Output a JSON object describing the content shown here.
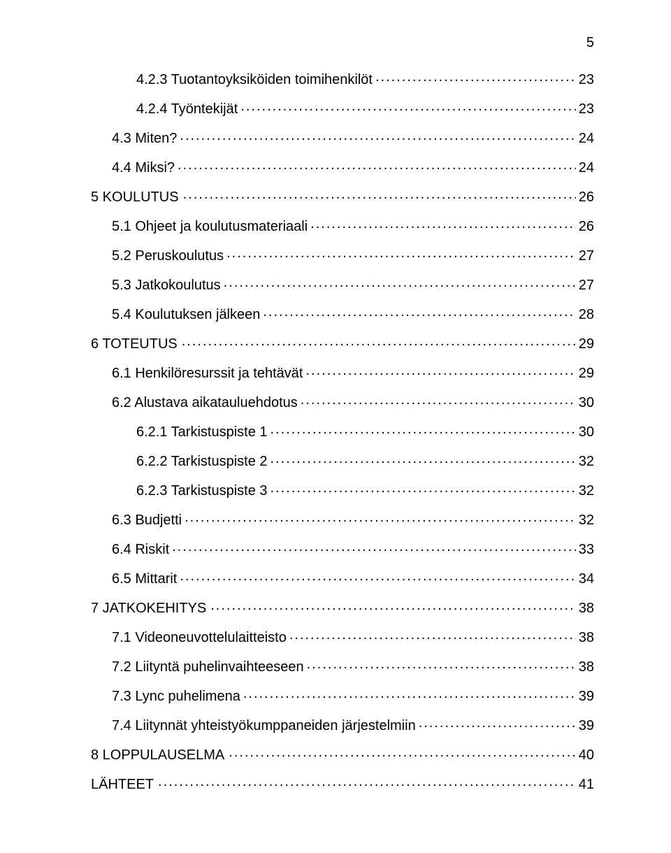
{
  "page_number": "5",
  "typography": {
    "font_family": "Arial",
    "font_size_pt": 15,
    "color": "#000000",
    "background": "#ffffff"
  },
  "toc": [
    {
      "indent": 2,
      "label": "4.2.3  Tuotantoyksiköiden toimihenkilöt",
      "page": "23"
    },
    {
      "indent": 2,
      "label": "4.2.4  Työntekijät",
      "page": "23"
    },
    {
      "indent": 1,
      "label": "4.3  Miten?",
      "page": "24"
    },
    {
      "indent": 1,
      "label": "4.4  Miksi?",
      "page": "24"
    },
    {
      "indent": 0,
      "label": "5  KOULUTUS",
      "page": "26",
      "nodots_space": true
    },
    {
      "indent": 1,
      "label": "5.1  Ohjeet ja koulutusmateriaali",
      "page": "26"
    },
    {
      "indent": 1,
      "label": "5.2  Peruskoulutus",
      "page": "27"
    },
    {
      "indent": 1,
      "label": "5.3  Jatkokoulutus",
      "page": "27"
    },
    {
      "indent": 1,
      "label": "5.4  Koulutuksen jälkeen",
      "page": "28"
    },
    {
      "indent": 0,
      "label": "6  TOTEUTUS",
      "page": "29",
      "nodots_space": true
    },
    {
      "indent": 1,
      "label": "6.1  Henkilöresurssit ja tehtävät",
      "page": "29"
    },
    {
      "indent": 1,
      "label": "6.2  Alustava aikatauluehdotus",
      "page": "30"
    },
    {
      "indent": 2,
      "label": "6.2.1  Tarkistuspiste 1",
      "page": "30"
    },
    {
      "indent": 2,
      "label": "6.2.2  Tarkistuspiste 2",
      "page": "32"
    },
    {
      "indent": 2,
      "label": "6.2.3  Tarkistuspiste 3",
      "page": "32"
    },
    {
      "indent": 1,
      "label": "6.3  Budjetti",
      "page": "32"
    },
    {
      "indent": 1,
      "label": "6.4  Riskit",
      "page": "33"
    },
    {
      "indent": 1,
      "label": "6.5  Mittarit",
      "page": "34"
    },
    {
      "indent": 0,
      "label": "7  JATKOKEHITYS",
      "page": "38",
      "nodots_space": true
    },
    {
      "indent": 1,
      "label": "7.1  Videoneuvottelulaitteisto",
      "page": "38"
    },
    {
      "indent": 1,
      "label": "7.2  Liityntä puhelinvaihteeseen",
      "page": "38"
    },
    {
      "indent": 1,
      "label": "7.3  Lync puhelimena",
      "page": "39"
    },
    {
      "indent": 1,
      "label": "7.4  Liitynnät yhteistyökumppaneiden järjestelmiin",
      "page": "39"
    },
    {
      "indent": 0,
      "label": "8  LOPPULAUSELMA",
      "page": "40",
      "nodots_space": true
    },
    {
      "indent": 0,
      "label": "LÄHTEET",
      "page": "41",
      "nodots_space": true
    }
  ]
}
